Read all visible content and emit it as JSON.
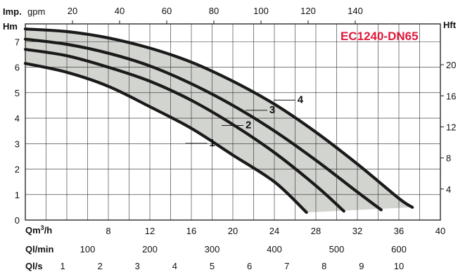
{
  "chart_data": {
    "type": "line",
    "title": "EC1240-DN65",
    "colors": {
      "title": "#e0193a",
      "curve": "#1a1a1a",
      "band": "#d2d4cf",
      "grid": "#2a2a2a"
    },
    "grid": true,
    "x_axis": {
      "label_prefix": "Qm",
      "label_sup": "3",
      "label_suffix": "/h",
      "range": [
        0,
        40
      ],
      "ticks": [
        "8",
        "12",
        "16",
        "20",
        "24",
        "28",
        "32",
        "36",
        "40"
      ]
    },
    "y_axis": {
      "label": "Hm",
      "range": [
        0,
        7.7
      ],
      "ticks": [
        "0",
        "1",
        "2",
        "3",
        "4",
        "5",
        "6",
        "7"
      ]
    },
    "top_axis": {
      "label_bold": "Imp.",
      "label_normal": "gpm",
      "ticks": [
        "20",
        "40",
        "60",
        "80",
        "100",
        "120",
        "140"
      ]
    },
    "right_axis": {
      "label": "Hft",
      "ticks": [
        "4",
        "8",
        "12",
        "16",
        "20"
      ]
    },
    "extra_x_axes": [
      {
        "label": "Ql/min",
        "ticks": [
          "100",
          "200",
          "300",
          "400",
          "500",
          "600"
        ]
      },
      {
        "label": "Ql/s",
        "ticks": [
          "1",
          "2",
          "3",
          "4",
          "5",
          "6",
          "7",
          "8",
          "9",
          "10"
        ]
      }
    ],
    "series": [
      {
        "name": "1",
        "x": [
          0,
          4,
          8,
          12,
          16,
          20,
          24,
          27.1
        ],
        "y": [
          6.15,
          5.8,
          5.25,
          4.45,
          3.6,
          2.55,
          1.5,
          0.3
        ]
      },
      {
        "name": "2",
        "x": [
          0,
          4,
          8,
          12,
          16,
          20,
          24,
          28,
          30.7
        ],
        "y": [
          6.7,
          6.45,
          6.0,
          5.45,
          4.7,
          3.75,
          2.65,
          1.35,
          0.35
        ]
      },
      {
        "name": "3",
        "x": [
          0,
          4,
          8,
          12,
          16,
          20,
          24,
          28,
          32,
          34.3
        ],
        "y": [
          7.1,
          6.9,
          6.55,
          6.05,
          5.35,
          4.5,
          3.5,
          2.35,
          1.1,
          0.4
        ]
      },
      {
        "name": "4",
        "x": [
          0,
          4,
          8,
          12,
          16,
          20,
          24,
          28,
          32,
          36,
          37.3
        ],
        "y": [
          7.5,
          7.4,
          7.15,
          6.75,
          6.2,
          5.45,
          4.55,
          3.45,
          2.2,
          0.85,
          0.5
        ]
      }
    ]
  }
}
